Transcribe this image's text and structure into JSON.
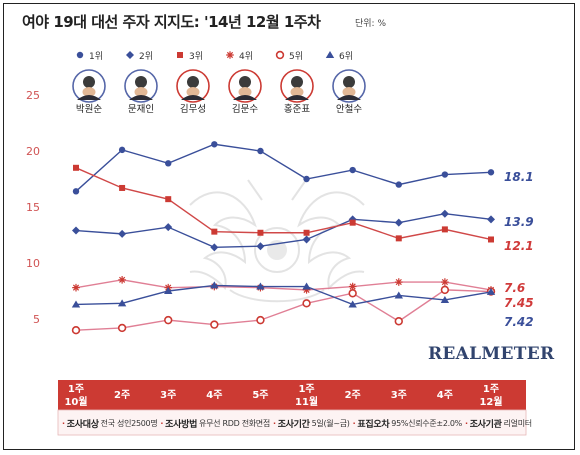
{
  "title": "여야 19대 대선 주자 지지도: '14년 12월 1주차",
  "unit": "단위: %",
  "brand": "REALMETER",
  "footer": {
    "items": [
      {
        "key": "조사대상",
        "value": "전국 성인2500명"
      },
      {
        "key": "조사방법",
        "value": "유무선 RDD 전화면접"
      },
      {
        "key": "조사기간",
        "value": "5일(월~금)"
      },
      {
        "key": "표집오차",
        "value": "95%신뢰수준±2.0%"
      },
      {
        "key": "조사기관",
        "value": "리얼미터"
      }
    ]
  },
  "colors": {
    "blue_line": "#3a4f9a",
    "red_line": "#d04848",
    "pink_line": "#e07f95",
    "axis_text": "#d05353",
    "band_red": "#cc3a33",
    "dark_blue_label": "#3a4f9a",
    "red_label": "#d03a3a"
  },
  "legend": [
    {
      "rank": "1위",
      "marker": "circle",
      "color": "#3a4f9a",
      "name": "박원순",
      "icon": "portrait-1-icon"
    },
    {
      "rank": "2위",
      "marker": "diamond",
      "color": "#3a4f9a",
      "name": "문재인",
      "icon": "portrait-2-icon"
    },
    {
      "rank": "3위",
      "marker": "square",
      "color": "#cc3a33",
      "name": "김무성",
      "icon": "portrait-3-icon"
    },
    {
      "rank": "4위",
      "marker": "asterisk",
      "color": "#cc3a33",
      "name": "김문수",
      "icon": "portrait-4-icon"
    },
    {
      "rank": "5위",
      "marker": "ring",
      "color": "#cc3a33",
      "name": "홍준표",
      "icon": "portrait-5-icon"
    },
    {
      "rank": "6위",
      "marker": "triangle",
      "color": "#3a4f9a",
      "name": "안철수",
      "icon": "portrait-6-icon"
    }
  ],
  "chart_data": {
    "type": "line",
    "title": "여야 19대 대선 주자 지지도: '14년 12월 1주차",
    "ylabel": "",
    "xlabel": "",
    "ylim": [
      0,
      25
    ],
    "yticks": [
      5,
      10,
      15,
      20,
      25
    ],
    "grid": false,
    "categories": [
      {
        "week": "1주",
        "month": "10월"
      },
      {
        "week": "2주",
        "month": ""
      },
      {
        "week": "3주",
        "month": ""
      },
      {
        "week": "4주",
        "month": ""
      },
      {
        "week": "5주",
        "month": ""
      },
      {
        "week": "1주",
        "month": "11월"
      },
      {
        "week": "2주",
        "month": ""
      },
      {
        "week": "3주",
        "month": ""
      },
      {
        "week": "4주",
        "month": ""
      },
      {
        "week": "1주",
        "month": "12월"
      }
    ],
    "series": [
      {
        "name": "박원순",
        "marker": "circle",
        "color": "#3a4f9a",
        "values": [
          16.4,
          20.1,
          18.9,
          20.6,
          20.0,
          17.5,
          18.3,
          17.0,
          17.9,
          18.1
        ],
        "end_label": "18.1"
      },
      {
        "name": "문재인",
        "marker": "diamond",
        "color": "#3a4f9a",
        "values": [
          12.9,
          12.6,
          13.2,
          11.4,
          11.5,
          12.1,
          13.9,
          13.6,
          14.4,
          13.9
        ],
        "end_label": "13.9"
      },
      {
        "name": "김무성",
        "marker": "square",
        "color": "#cc3a33",
        "values": [
          18.5,
          16.7,
          15.7,
          12.8,
          12.7,
          12.7,
          13.6,
          12.2,
          13.0,
          12.1
        ],
        "end_label": "12.1"
      },
      {
        "name": "김문수",
        "marker": "asterisk",
        "color": "#cc3a33",
        "values": [
          7.8,
          8.5,
          7.8,
          7.9,
          7.8,
          7.6,
          7.9,
          8.3,
          8.3,
          7.6
        ],
        "end_label": "7.6"
      },
      {
        "name": "홍준표",
        "marker": "ring",
        "color": "#cc3a33",
        "values": [
          4.0,
          4.2,
          4.9,
          4.5,
          4.9,
          6.4,
          7.3,
          4.8,
          7.6,
          7.45
        ],
        "end_label": "7.45"
      },
      {
        "name": "안철수",
        "marker": "triangle",
        "color": "#3a4f9a",
        "values": [
          6.3,
          6.4,
          7.5,
          8.0,
          7.9,
          7.9,
          6.3,
          7.1,
          6.7,
          7.42
        ],
        "end_label": "7.42"
      }
    ]
  }
}
